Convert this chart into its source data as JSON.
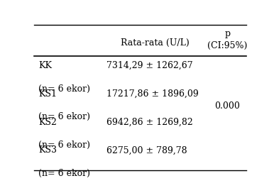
{
  "col2_header": "Rata-rata (U/L)",
  "col3_header": "p\n(CI:95%)",
  "rows": [
    {
      "label": "KK",
      "sublabel": "(n= 6 ekor)",
      "value": "7314,29 ± 1262,67",
      "p": ""
    },
    {
      "label": "KS1",
      "sublabel": "(n= 6 ekor)",
      "value": "17217,86 ± 1896,09",
      "p": ""
    },
    {
      "label": "KS2",
      "sublabel": "(n= 6 ekor)",
      "value": "6942,86 ± 1269,82",
      "p": "0.000"
    },
    {
      "label": "KS3",
      "sublabel": "(n= 6 ekor)",
      "value": "6275,00 ± 789,78",
      "p": ""
    }
  ],
  "bg_color": "#ffffff",
  "text_color": "#000000",
  "font_size": 9
}
